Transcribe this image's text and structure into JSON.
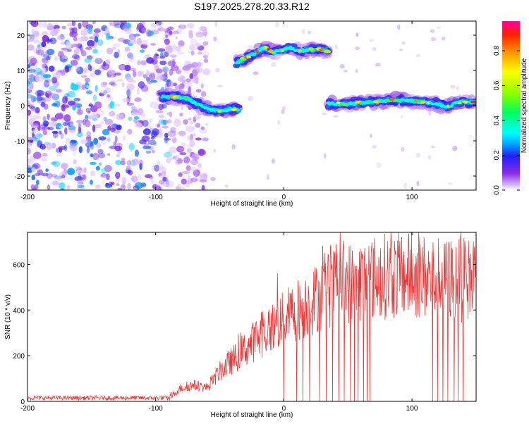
{
  "title": "S197.2025.278.20.33.R12",
  "chart_data": [
    {
      "type": "heatmap",
      "xlabel": "Height of straight line (km)",
      "ylabel": "Frequency (Hz)",
      "xlim": [
        -200,
        150
      ],
      "ylim": [
        -24,
        24
      ],
      "xticks": [
        -200,
        -100,
        0,
        100
      ],
      "yticks": [
        -20,
        -10,
        0,
        10,
        20
      ],
      "colorbar": {
        "label": "Normalized spectral amplitude",
        "range": [
          0,
          0.97
        ],
        "ticks": [
          0.0,
          0.2,
          0.4,
          0.6,
          0.8
        ],
        "colors": [
          "#ffffff",
          "#d8b8ff",
          "#8a2be2",
          "#2020ff",
          "#00b0ff",
          "#00ffff",
          "#00ff60",
          "#80ff00",
          "#ffff00",
          "#ff9000",
          "#ff2000",
          "#ff00a0"
        ]
      },
      "ridges": [
        {
          "x_range": [
            -95,
            -35
          ],
          "points": [
            [
              -95,
              2.5
            ],
            [
              -85,
              2.5
            ],
            [
              -75,
              2.0
            ],
            [
              -68,
              0.5
            ],
            [
              -60,
              -1.0
            ],
            [
              -50,
              -1.5
            ],
            [
              -40,
              -1.0
            ],
            [
              -36,
              -1.0
            ]
          ],
          "peak_amplitude": 0.9
        },
        {
          "x_range": [
            -37,
            35
          ],
          "points": [
            [
              -37,
              12
            ],
            [
              -30,
              13.5
            ],
            [
              -22,
              15
            ],
            [
              -15,
              16.5
            ],
            [
              -8,
              15
            ],
            [
              0,
              16
            ],
            [
              5,
              16.5
            ],
            [
              12,
              15.5
            ],
            [
              20,
              16
            ],
            [
              28,
              16
            ],
            [
              35,
              15.5
            ]
          ],
          "peak_amplitude": 0.95
        },
        {
          "x_range": [
            35,
            150
          ],
          "points": [
            [
              35,
              0.5
            ],
            [
              50,
              0.5
            ],
            [
              65,
              1.0
            ],
            [
              80,
              1.5
            ],
            [
              95,
              1.5
            ],
            [
              110,
              1.0
            ],
            [
              120,
              0.5
            ],
            [
              128,
              -0.5
            ],
            [
              135,
              1.0
            ],
            [
              150,
              1.0
            ]
          ],
          "peak_amplitude": 0.97
        }
      ],
      "noise_region": {
        "x_range": [
          -200,
          -90
        ],
        "max_amplitude": 0.3
      }
    },
    {
      "type": "line",
      "xlabel": "Height of straight line (km)",
      "ylabel": "SNR (10 * v/v)",
      "xlim": [
        -200,
        150
      ],
      "ylim": [
        0,
        740
      ],
      "xticks": [
        -200,
        -100,
        0,
        100
      ],
      "yticks": [
        0,
        200,
        400,
        600
      ],
      "color": "#e83a3a",
      "envelope": [
        {
          "x": -200,
          "y": 10
        },
        {
          "x": -90,
          "y": 10
        },
        {
          "x": -80,
          "y": 60
        },
        {
          "x": -70,
          "y": 70
        },
        {
          "x": -60,
          "y": 60
        },
        {
          "x": -50,
          "y": 130
        },
        {
          "x": -40,
          "y": 180
        },
        {
          "x": -30,
          "y": 230
        },
        {
          "x": -20,
          "y": 280
        },
        {
          "x": -10,
          "y": 320
        },
        {
          "x": 0,
          "y": 360
        },
        {
          "x": 10,
          "y": 400
        },
        {
          "x": 20,
          "y": 430
        },
        {
          "x": 30,
          "y": 470
        },
        {
          "x": 40,
          "y": 510
        },
        {
          "x": 60,
          "y": 530
        },
        {
          "x": 80,
          "y": 550
        },
        {
          "x": 100,
          "y": 550
        },
        {
          "x": 120,
          "y": 540
        },
        {
          "x": 140,
          "y": 530
        },
        {
          "x": 150,
          "y": 540
        }
      ],
      "spikes_max": [
        {
          "x": -5,
          "y": 560
        },
        {
          "x": 125,
          "y": 690
        },
        {
          "x": 138,
          "y": 740
        },
        {
          "x": 148,
          "y": 700
        }
      ],
      "dropouts_to_zero_x": [
        -5,
        0,
        10,
        15,
        20,
        28,
        33,
        38,
        43,
        47,
        52,
        55,
        58,
        62,
        65,
        67,
        116,
        120,
        124,
        128,
        133,
        136,
        140
      ]
    }
  ]
}
